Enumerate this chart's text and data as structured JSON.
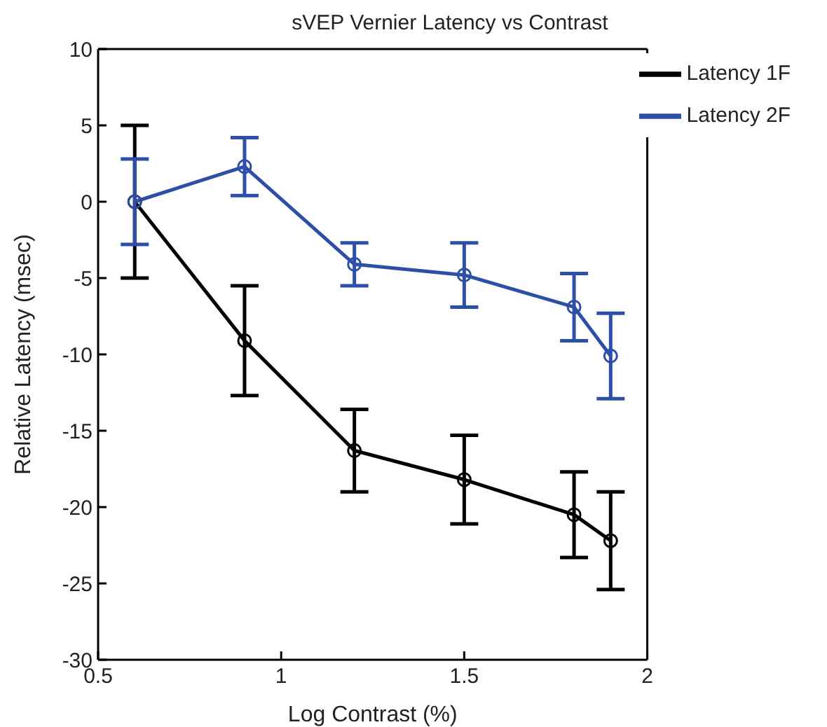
{
  "chart_data": {
    "type": "line",
    "title": "sVEP Vernier Latency vs Contrast",
    "xlabel": "Log Contrast (%)",
    "ylabel": "Relative Latency (msec)",
    "x": [
      0.6,
      0.9,
      1.2,
      1.5,
      1.8,
      1.9
    ],
    "series": [
      {
        "name": "Latency 1F",
        "color": "#000000",
        "values": [
          0,
          -9.1,
          -16.3,
          -18.2,
          -20.5,
          -22.2
        ],
        "errors": [
          5,
          3.6,
          2.7,
          2.9,
          2.8,
          3.2
        ]
      },
      {
        "name": "Latency 2F",
        "color": "#2e4fa8",
        "values": [
          0,
          2.3,
          -4.1,
          -4.8,
          -6.9,
          -10.1
        ],
        "errors": [
          2.8,
          1.9,
          1.4,
          2.1,
          2.2,
          2.8
        ]
      }
    ],
    "xlim": [
      0.5,
      2
    ],
    "xticks": [
      0.5,
      1,
      1.5,
      2
    ],
    "ylim": [
      -30,
      10
    ],
    "yticks": [
      -30,
      -25,
      -20,
      -15,
      -10,
      -5,
      0,
      5,
      10
    ],
    "grid": false,
    "legend": "top right",
    "marker": "circle",
    "line_style": "solid"
  }
}
